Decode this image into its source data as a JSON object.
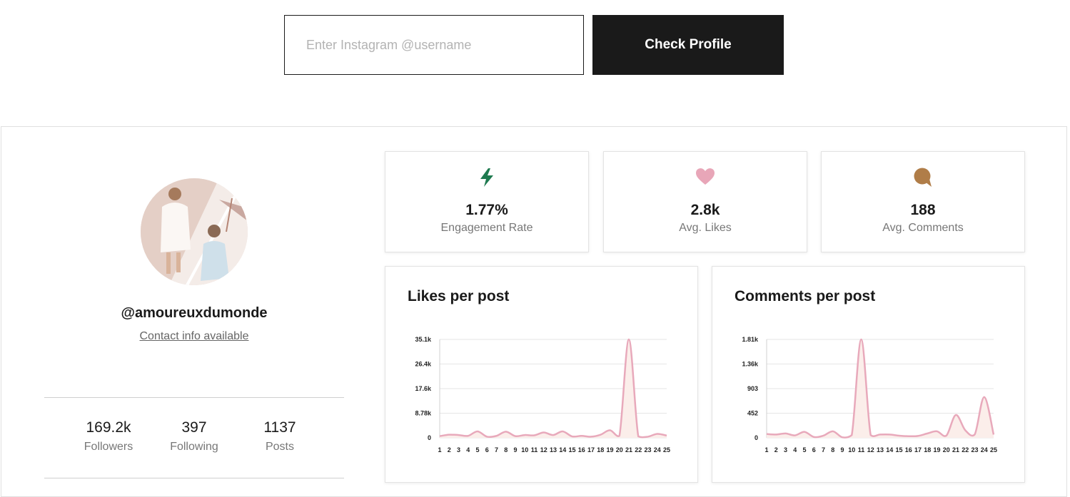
{
  "search": {
    "placeholder": "Enter Instagram @username",
    "value": "",
    "button_label": "Check Profile"
  },
  "profile": {
    "handle": "@amoureuxdumonde",
    "contact_label": "Contact info available",
    "stats": [
      {
        "value": "169.2k",
        "label": "Followers"
      },
      {
        "value": "397",
        "label": "Following"
      },
      {
        "value": "1137",
        "label": "Posts"
      }
    ]
  },
  "metrics": [
    {
      "icon": "lightning-icon",
      "value": "1.77%",
      "label": "Engagement Rate",
      "color": "#1e7a4f"
    },
    {
      "icon": "heart-icon",
      "value": "2.8k",
      "label": "Avg. Likes",
      "color": "#e8a6b8"
    },
    {
      "icon": "chat-bubble-icon",
      "value": "188",
      "label": "Avg. Comments",
      "color": "#b07d48"
    }
  ],
  "colors": {
    "line": "#e8a9bb",
    "fill": "#fbeeea",
    "grid": "#e6e6e6",
    "button_bg": "#1a1a1a"
  },
  "chart_data": [
    {
      "type": "area",
      "title": "Likes per post",
      "x": [
        1,
        2,
        3,
        4,
        5,
        6,
        7,
        8,
        9,
        10,
        11,
        12,
        13,
        14,
        15,
        16,
        17,
        18,
        19,
        20,
        21,
        22,
        23,
        24,
        25
      ],
      "ytick_labels": [
        "0",
        "8.78k",
        "17.6k",
        "26.4k",
        "35.1k"
      ],
      "ylim": [
        0,
        35100
      ],
      "values": [
        600,
        1100,
        1000,
        700,
        2300,
        400,
        700,
        2200,
        600,
        1000,
        900,
        1900,
        1000,
        2300,
        500,
        700,
        400,
        1100,
        2700,
        700,
        35100,
        500,
        400,
        1400,
        800
      ],
      "grid": true
    },
    {
      "type": "area",
      "title": "Comments per post",
      "x": [
        1,
        2,
        3,
        4,
        5,
        6,
        7,
        8,
        9,
        10,
        11,
        12,
        13,
        14,
        15,
        16,
        17,
        18,
        19,
        20,
        21,
        22,
        23,
        24,
        25
      ],
      "ytick_labels": [
        "0",
        "452",
        "903",
        "1.36k",
        "1.81k"
      ],
      "ylim": [
        0,
        1810
      ],
      "values": [
        70,
        60,
        80,
        45,
        110,
        15,
        40,
        120,
        10,
        50,
        1810,
        50,
        60,
        60,
        40,
        30,
        35,
        80,
        120,
        40,
        420,
        140,
        60,
        750,
        60
      ],
      "grid": true
    }
  ]
}
